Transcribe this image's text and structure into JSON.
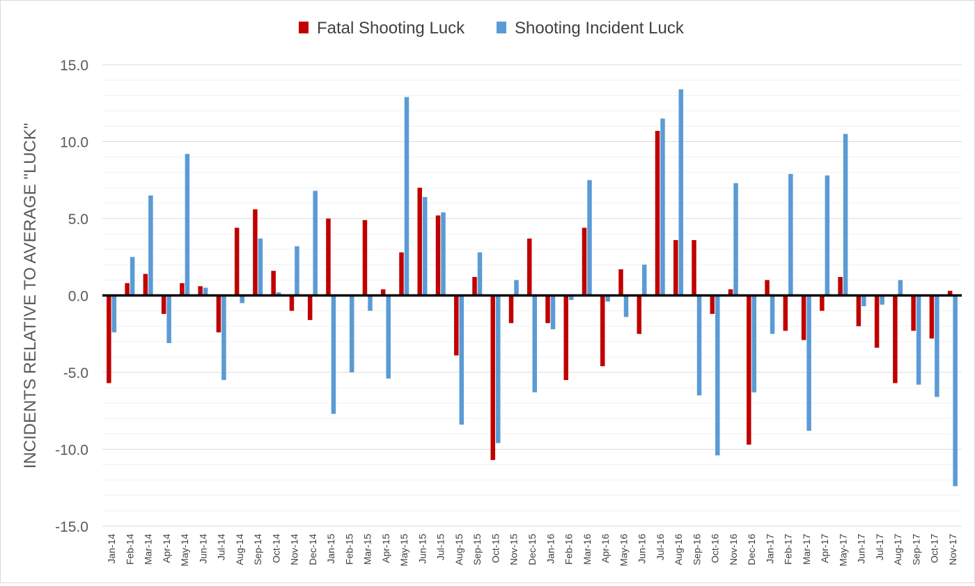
{
  "chart_data": {
    "type": "bar",
    "title": "",
    "xlabel": "",
    "ylabel": "INCIDENTS RELATIVE TO AVERAGE \"LUCK\"",
    "ylim": [
      -15,
      15
    ],
    "yticks": [
      -15,
      -10,
      -5,
      0,
      5,
      10,
      15
    ],
    "ytick_labels": [
      "-15.0",
      "-10.0",
      "-5.0",
      "0.0",
      "5.0",
      "10.0",
      "15.0"
    ],
    "grid": true,
    "legend": "top-center",
    "categories": [
      "Jan-14",
      "Feb-14",
      "Mar-14",
      "Apr-14",
      "May-14",
      "Jun-14",
      "Jul-14",
      "Aug-14",
      "Sep-14",
      "Oct-14",
      "Nov-14",
      "Dec-14",
      "Jan-15",
      "Feb-15",
      "Mar-15",
      "Apr-15",
      "May-15",
      "Jun-15",
      "Jul-15",
      "Aug-15",
      "Sep-15",
      "Oct-15",
      "Nov-15",
      "Dec-15",
      "Jan-16",
      "Feb-16",
      "Mar-16",
      "Apr-16",
      "May-16",
      "Jun-16",
      "Jul-16",
      "Aug-16",
      "Sep-16",
      "Oct-16",
      "Nov-16",
      "Dec-16",
      "Jan-17",
      "Feb-17",
      "Mar-17",
      "Apr-17",
      "May-17",
      "Jun-17",
      "Jul-17",
      "Aug-17",
      "Sep-17",
      "Oct-17",
      "Nov-17"
    ],
    "series": [
      {
        "name": "Fatal Shooting Luck",
        "color": "#c00000",
        "values": [
          -5.7,
          0.8,
          1.4,
          -1.2,
          0.8,
          0.6,
          -2.4,
          4.4,
          5.6,
          1.6,
          -1.0,
          -1.6,
          5.0,
          0.0,
          4.9,
          0.4,
          2.8,
          7.0,
          5.2,
          -3.9,
          1.2,
          -10.7,
          -1.8,
          3.7,
          -1.8,
          -5.5,
          4.4,
          -4.6,
          1.7,
          -2.5,
          10.7,
          3.6,
          3.6,
          -1.2,
          0.4,
          -9.7,
          1.0,
          -2.3,
          -2.9,
          -1.0,
          1.2,
          -2.0,
          -3.4,
          -5.7,
          -2.3,
          -2.8,
          0.3
        ]
      },
      {
        "name": "Shooting Incident Luck",
        "color": "#5b9bd5",
        "values": [
          -2.4,
          2.5,
          6.5,
          -3.1,
          9.2,
          0.5,
          -5.5,
          -0.5,
          3.7,
          0.2,
          3.2,
          6.8,
          -7.7,
          -5.0,
          -1.0,
          -5.4,
          12.9,
          6.4,
          5.4,
          -8.4,
          2.8,
          -9.6,
          1.0,
          -6.3,
          -2.2,
          -0.3,
          7.5,
          -0.4,
          -1.4,
          2.0,
          11.5,
          13.4,
          -6.5,
          -10.4,
          7.3,
          -6.3,
          -2.5,
          7.9,
          -8.8,
          7.8,
          10.5,
          -0.7,
          -0.6,
          1.0,
          -5.8,
          -6.6,
          -12.4
        ]
      }
    ]
  }
}
